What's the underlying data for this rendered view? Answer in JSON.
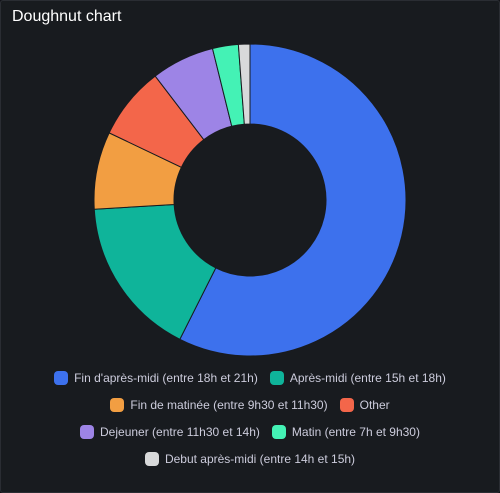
{
  "panel": {
    "title": "Doughnut chart"
  },
  "chart_data": {
    "type": "pie",
    "variant": "doughnut",
    "legend_position": "bottom",
    "series": [
      {
        "name": "Fin d'après-midi (entre 18h et 21h)",
        "value": 58.0,
        "color": "#3d71ed"
      },
      {
        "name": "Après-midi (entre 15h et 18h)",
        "value": 16.8,
        "color": "#0fb49a"
      },
      {
        "name": "Fin de matinée (entre 9h30 et 11h30)",
        "value": 8.1,
        "color": "#f29e42"
      },
      {
        "name": "Other",
        "value": 7.6,
        "color": "#f3664a"
      },
      {
        "name": "Dejeuner (entre 11h30 et 14h)",
        "value": 6.6,
        "color": "#9d84e6"
      },
      {
        "name": "Matin (entre 7h et 9h30)",
        "value": 2.7,
        "color": "#44f2b5"
      },
      {
        "name": "Debut après-midi (entre 14h et 15h)",
        "value": 1.2,
        "color": "#d8d9da"
      }
    ]
  },
  "legend": {
    "rows": [
      [
        0,
        1
      ],
      [
        2,
        3
      ],
      [
        4,
        5
      ],
      [
        6
      ]
    ]
  }
}
